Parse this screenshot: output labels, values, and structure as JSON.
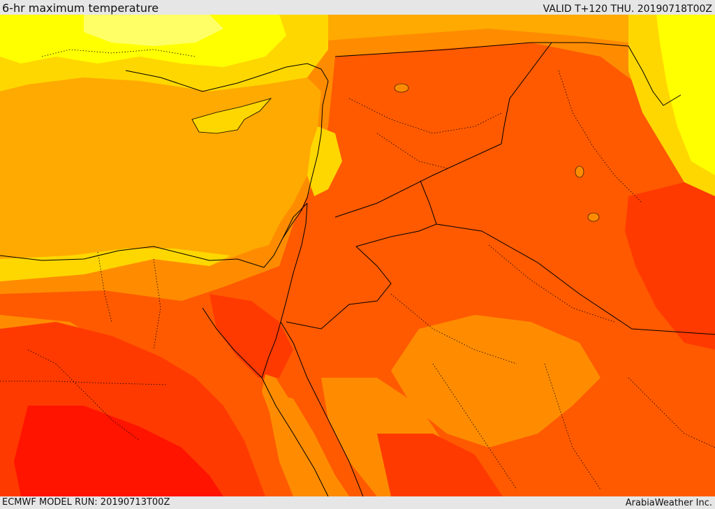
{
  "header": {
    "title": "6-hr maximum temperature",
    "valid": "VALID T+120 THU. 20190718T00Z"
  },
  "footer": {
    "model_run": "ECMWF MODEL RUN: 20190713T00Z",
    "credit": "ArabiaWeather Inc."
  },
  "palette": {
    "pale_yellow": "#ffff66",
    "yellow": "#ffff00",
    "gold": "#ffd700",
    "amber": "#ffaa00",
    "orange": "#ff8c00",
    "dark_orange": "#ff5a00",
    "red_orange": "#ff3a00",
    "red": "#ff1400",
    "border": "#000000"
  }
}
